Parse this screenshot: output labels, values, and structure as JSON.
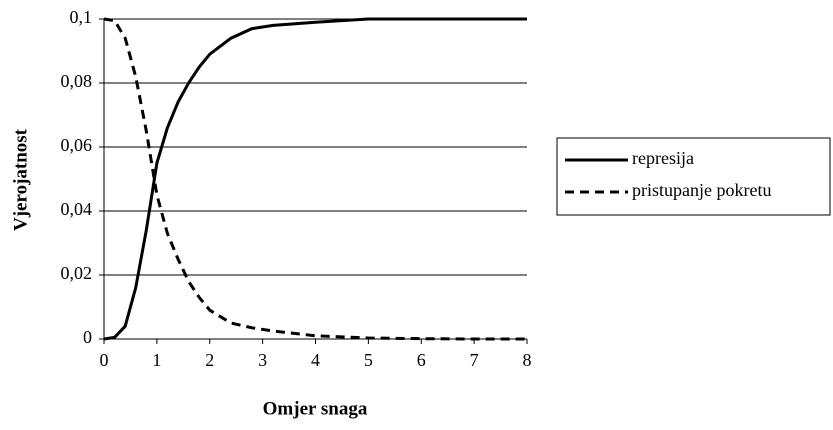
{
  "chart_data": {
    "type": "line",
    "x_label": "Omjer snaga",
    "y_label": "Vjerojatnost",
    "x": [
      0,
      0.2,
      0.4,
      0.6,
      0.8,
      1.0,
      1.2,
      1.4,
      1.6,
      1.8,
      2.0,
      2.4,
      2.8,
      3.2,
      4,
      5,
      6,
      7,
      8
    ],
    "series": [
      {
        "name": "represija",
        "color": "#000000",
        "dash": false,
        "values": [
          0,
          0.0005,
          0.004,
          0.016,
          0.034,
          0.055,
          0.066,
          0.074,
          0.08,
          0.085,
          0.089,
          0.094,
          0.097,
          0.098,
          0.099,
          0.1,
          0.1,
          0.1,
          0.1
        ]
      },
      {
        "name": "pristupanje pokretu",
        "color": "#000000",
        "dash": true,
        "values": [
          0.1,
          0.0995,
          0.094,
          0.082,
          0.065,
          0.045,
          0.033,
          0.025,
          0.018,
          0.013,
          0.009,
          0.005,
          0.0035,
          0.0025,
          0.001,
          0.0003,
          0.0001,
          0,
          0
        ]
      }
    ],
    "xlim": [
      0,
      8
    ],
    "xticks": [
      0,
      1,
      2,
      3,
      4,
      5,
      6,
      7,
      8
    ],
    "ylim": [
      0,
      0.1
    ],
    "yticks": [
      0,
      {
        "value": 0.02,
        "label": "0,02"
      },
      {
        "value": 0.04,
        "label": "0,04"
      },
      {
        "value": 0.06,
        "label": "0,06"
      },
      {
        "value": 0.08,
        "label": "0,08"
      },
      {
        "value": 0.1,
        "label": "0,1"
      }
    ],
    "grid": true,
    "legend": "right"
  }
}
